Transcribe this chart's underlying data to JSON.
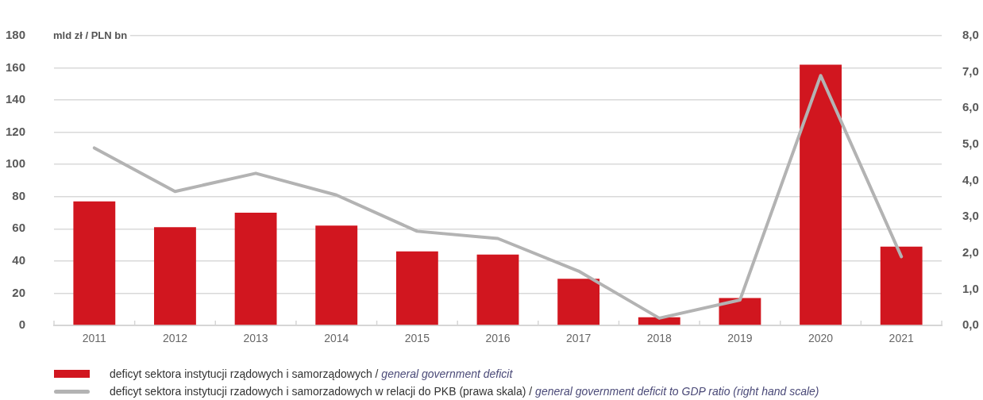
{
  "chart_data": {
    "type": "bar",
    "ylabel": "mld zł / PLN bn",
    "categories": [
      "2011",
      "2012",
      "2013",
      "2014",
      "2015",
      "2016",
      "2017",
      "2018",
      "2019",
      "2020",
      "2021"
    ],
    "series": [
      {
        "name": "deficyt sektora instytucji rządowych i samorządowych / general government deficit",
        "color": "#d1161f",
        "values": [
          77,
          61,
          70,
          62,
          46,
          44,
          29,
          5,
          17,
          162,
          49
        ]
      },
      {
        "name": "deficyt sektora instytucji rzadowych i samorzadowych w relacji do PKB (prawa skala) / general government deficit to GDP ratio (right hand scale)",
        "type": "line",
        "axis": "y2",
        "color": "#b3b3b3",
        "values": [
          4.9,
          3.7,
          4.2,
          3.6,
          2.6,
          2.4,
          1.5,
          0.2,
          0.7,
          6.9,
          1.9
        ]
      }
    ],
    "ylim": [
      0,
      180
    ],
    "yticks": [
      0,
      20,
      40,
      60,
      80,
      100,
      120,
      140,
      160,
      180
    ],
    "y2lim": [
      0,
      8
    ],
    "y2ticks": [
      {
        "value": 0,
        "label": "0,0"
      },
      {
        "value": 1,
        "label": "1,0"
      },
      {
        "value": 2,
        "label": "2,0"
      },
      {
        "value": 3,
        "label": "3,0"
      },
      {
        "value": 4,
        "label": "4,0"
      },
      {
        "value": 5,
        "label": "5,0"
      },
      {
        "value": 6,
        "label": "6,0"
      },
      {
        "value": 7,
        "label": "7,0"
      },
      {
        "value": 8,
        "label": "8,0"
      }
    ],
    "grid": "y",
    "legend": "bottom",
    "marker": "none"
  }
}
